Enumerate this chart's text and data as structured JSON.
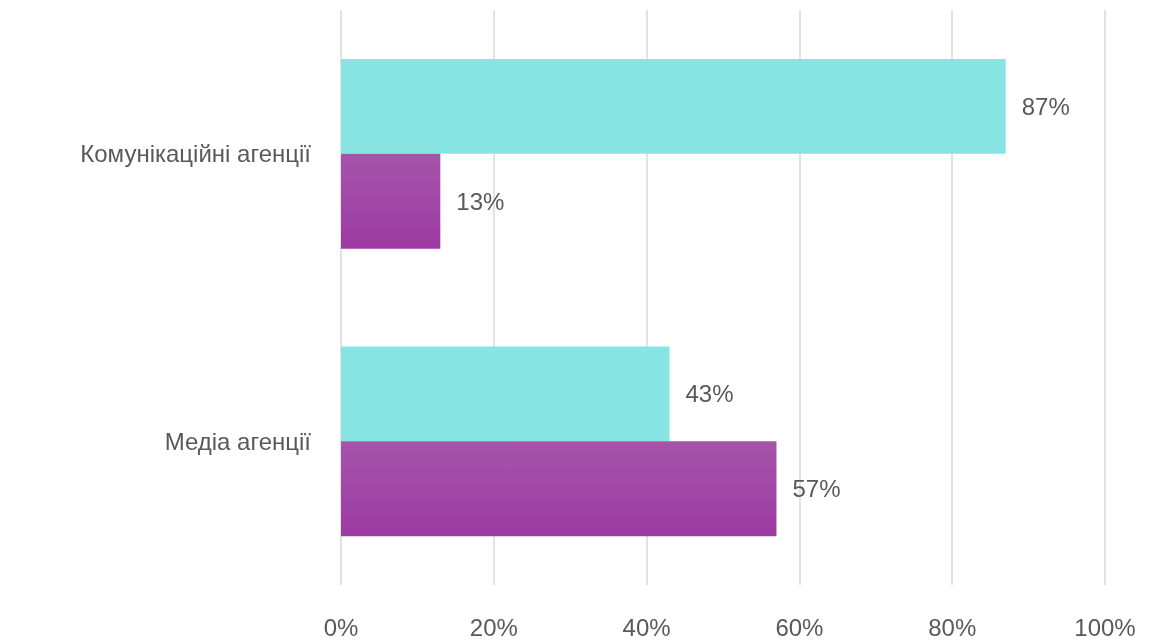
{
  "chart_data": {
    "type": "bar",
    "orientation": "horizontal",
    "categories": [
      "Комунікаційні агенції",
      "Медіа агенції"
    ],
    "series": [
      {
        "color": "#86e5e3",
        "values": [
          87,
          43
        ],
        "value_labels": [
          "87%",
          "43%"
        ]
      },
      {
        "color": "#96389c",
        "values": [
          13,
          57
        ],
        "value_labels": [
          "13%",
          "57%"
        ]
      }
    ],
    "xlim": [
      0,
      100
    ],
    "xticks": [
      {
        "value": 0,
        "label": "0%"
      },
      {
        "value": 20,
        "label": "20%"
      },
      {
        "value": 40,
        "label": "40%"
      },
      {
        "value": 60,
        "label": "60%"
      },
      {
        "value": 80,
        "label": "80%"
      },
      {
        "value": 100,
        "label": "100%"
      }
    ],
    "grid": "x"
  }
}
